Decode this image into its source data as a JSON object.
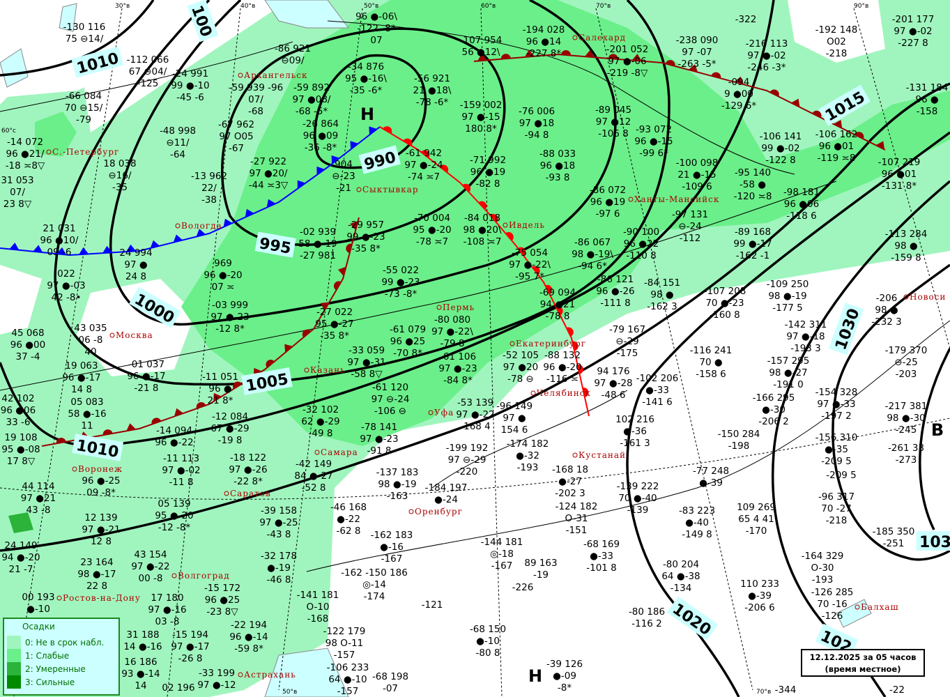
{
  "colors": {
    "precip_0": "#a0f5be",
    "precip_1": "#6bef8a",
    "precip_2": "#2bb33a",
    "precip_3": "#008a00",
    "water": "#ccffff",
    "isobar": "#000000",
    "cold_front": "#0000ff",
    "warm_front": "#ff0000",
    "occluded_front": "#990000",
    "city": "#aa0000",
    "symbols": "#008800"
  },
  "legend": {
    "title": "Осадки",
    "items": [
      {
        "label": "0: Не в срок набл.",
        "level": 0
      },
      {
        "label": "1: Слабые",
        "level": 1
      },
      {
        "label": "2: Умеренные",
        "level": 2
      },
      {
        "label": "3: Сильные",
        "level": 3
      }
    ]
  },
  "datebox": {
    "line1": "12.12.2025 за 05 часов",
    "line2": "(время местное)"
  },
  "isobar_labels": [
    "1010",
    "100",
    "990",
    "995",
    "1000",
    "1005",
    "1010",
    "1015",
    "1030",
    "1020",
    "102",
    "103"
  ],
  "pressure_centers": [
    "Н",
    "Н",
    "В"
  ],
  "meridian_labels": [
    "30°в",
    "40°в",
    "50°в",
    "60°в",
    "70°в",
    "90°в",
    "60°с",
    "50°в",
    "70°в"
  ],
  "cities": [
    "С.-Петербург",
    "Архангельск",
    "Сыктывкар",
    "Вологда",
    "Москва",
    "Казань",
    "Пермь",
    "Ивдель",
    "Салехард",
    "Ханты-Мансийск",
    "Екатеринбург",
    "Челябинск",
    "Кустанай",
    "Уфа",
    "Самара",
    "Оренбург",
    "Саратов",
    "Волгоград",
    "Воронеж",
    "Ростов-на-Дону",
    "Астрахань",
    "Новоси",
    "Балхаш"
  ],
  "stations": [
    [
      "-130 116",
      "75 ⊖14/",
      ""
    ],
    [
      "-112 066",
      "67 ⊖04/",
      "-125"
    ],
    [
      "-66 084",
      "70 ⊖15/",
      "-79"
    ],
    [
      "-14 072",
      "96 ●21/",
      "-18 ≍8▽"
    ],
    [
      "-24 991",
      "99 ●-10",
      "-45 -6"
    ],
    [
      "-48 998",
      "⊖11/",
      "-64"
    ],
    [
      "18 038",
      "⊖16/",
      "-35"
    ],
    [
      "31 053",
      "07/",
      "23 8▽"
    ],
    [
      "21 031",
      "96 ●10/",
      "09 -6"
    ],
    [
      "022",
      "97 ●-03",
      "42 -8•"
    ],
    [
      "-59 939 -96",
      "07/",
      "-68"
    ],
    [
      "-67 962",
      "97 O05",
      "-67"
    ],
    [
      "-27 922",
      "97 ●20/",
      "-44 ≍3▽"
    ],
    [
      "-13 962",
      "22/",
      "-38"
    ],
    [
      "-86 921",
      "⊖09/",
      ""
    ],
    [
      "-59 892",
      "97 ●08/",
      "-68 -5*"
    ],
    [
      "-34 876",
      "95 ●-16\\",
      "-35 -6*"
    ],
    [
      "-26 864",
      "96 ●09",
      "-36 -8*"
    ],
    [
      "96 ●-06\\",
      "-122 -8*",
      "07"
    ],
    [
      "-56 921",
      "21 ●18\\",
      "-78 -6*"
    ],
    [
      "-61 942",
      "97 ●-24",
      "-74 ≍7"
    ],
    [
      "904",
      "⊖-23",
      "-21"
    ],
    [
      "-107 954",
      "56 ●12\\",
      ""
    ],
    [
      "-159 002",
      "97 ●-15",
      "180 8*"
    ],
    [
      "-71 992",
      "96 ●19",
      "-82 8"
    ],
    [
      "-194 028",
      "96 ●14",
      "-227 8*"
    ],
    [
      "-201 052",
      "97 ●-06",
      "-219 -8▽"
    ],
    [
      "-238 090",
      "97 -07",
      "-263 -5*"
    ],
    [
      "-216 113",
      "97 ●-02",
      "-246 -3*"
    ],
    [
      "-192 148",
      "O02",
      "-218"
    ],
    [
      "-201 177",
      "97 ●-02",
      "-227 8"
    ],
    [
      "-131 184",
      "96 ●",
      "-158"
    ],
    [
      "-094",
      "9 ●00",
      "-129 6*"
    ],
    [
      "-106 141",
      "99 ●-02",
      "-122 8"
    ],
    [
      "-106 162",
      "96 ●01",
      "-119 ≍8"
    ],
    [
      "-76 006",
      "97 ●18",
      "-94 8"
    ],
    [
      "-89 045",
      "97 ●12",
      "-106 8"
    ],
    [
      "-93 072",
      "96 ●-15",
      "-99 6*"
    ],
    [
      "-88 033",
      "96 ●18",
      "-93 8"
    ],
    [
      "-100 098",
      "21 ●-15",
      "-109 6"
    ],
    [
      "-95 140",
      "-58 ●",
      "-120 ≍8"
    ],
    [
      "-98 181",
      "96 ●06",
      "-118 6"
    ],
    [
      "-107 219",
      "96 ●01",
      "-131 8*"
    ],
    [
      "-113 284",
      "98 ●",
      "-159 8"
    ],
    [
      "-86 072",
      "96 ●19",
      "-97 6"
    ],
    [
      "-97 131",
      "⊖-24",
      "-112"
    ],
    [
      "-89 168",
      "99 ●-17",
      "-162 -1"
    ],
    [
      "-90 100",
      "96 ●22",
      "-110 8"
    ],
    [
      "-86 067",
      "98 ●-19\\",
      "-94 6*"
    ],
    [
      "-75 054",
      "97 ●-22\\",
      "-95 7*"
    ],
    [
      "-84 018",
      "98 ●20\\",
      "-108 ≍7"
    ],
    [
      "-70 004",
      "95 ●-20",
      "-78 ≍7"
    ],
    [
      "-29 957",
      "99 ●-23",
      "-35 8*"
    ],
    [
      "-02 939",
      "58 ●-19",
      "-27 981"
    ],
    [
      "-55 022",
      "99 ●-23",
      "-73 -8*"
    ],
    [
      "-80 080",
      "97 ●-22\\",
      "-79 8"
    ],
    [
      "-27 022",
      "95 ●-27",
      "-35 8*"
    ],
    [
      "-03 999",
      "97 ●-23",
      "-12 8*"
    ],
    [
      "969",
      "96 ●-20",
      "07 ≍"
    ],
    [
      "24 994",
      "97 ●",
      "24 8"
    ],
    [
      "-33 059",
      "97 ●-31",
      "-58 8▽"
    ],
    [
      "-61 079",
      "96 ●25",
      "-70 8*"
    ],
    [
      "-61 106",
      "97 ●-23",
      "-84 8*"
    ],
    [
      "-52 105",
      "97 ●20",
      "-78 ⊖"
    ],
    [
      "-88 132",
      "96 ●-20",
      "-116 ≍"
    ],
    [
      "-69 094",
      "94 ●21",
      "-78 8"
    ],
    [
      "-86 121",
      "96 ●-26",
      "-111 8"
    ],
    [
      "-84 151",
      "98 ●",
      "-162 3"
    ],
    [
      "-107 208",
      "70 ●-23",
      "-160 8"
    ],
    [
      "-109 250",
      "98 ●-19",
      "-177 5"
    ],
    [
      "-142 311",
      "97 ●-18",
      "-193 3"
    ],
    [
      "-206",
      "98 ●",
      "-232 3"
    ],
    [
      "-79 167",
      "⊖-29",
      "-175"
    ],
    [
      "-116 241",
      "70 ●",
      "-158 6"
    ],
    [
      "-157 295",
      "98 ●-27",
      "-191 0"
    ],
    [
      "-179 370",
      "⊖-25",
      "-203"
    ],
    [
      "94 176",
      "97 ●-28",
      "-48 6"
    ],
    [
      "-102 206",
      "●-33",
      "-141 6"
    ],
    [
      "-166 295",
      "●-30",
      "-206 2"
    ],
    [
      "-154 328",
      "97 ●-33",
      "-197 2"
    ],
    [
      "-217 381",
      "98 ●-30",
      "-245"
    ],
    [
      "-61 120",
      "97 ⊖-24",
      "-106 ⊖"
    ],
    [
      "-53 139",
      "97 ●-22",
      "-168 4"
    ],
    [
      "-96 149",
      "97 ●",
      "154 6"
    ],
    [
      "-32 102",
      "62 ●-29",
      "-49 8"
    ],
    [
      "-78 141",
      "97 ●-23",
      "-91 8"
    ],
    [
      "-174 182",
      "●-32",
      "-193"
    ],
    [
      "-199 192",
      "97 ⊖-29",
      "-220"
    ],
    [
      "-168 18",
      "●-27",
      "-202 3"
    ],
    [
      "102 216",
      "●-36",
      "-161 3"
    ],
    [
      "-150 284",
      "-198",
      ""
    ],
    [
      "-156 310",
      "●-35",
      "-209 5"
    ],
    [
      "-261 33",
      "-273",
      ""
    ],
    [
      "-11 051",
      "96 ●",
      "21 8*"
    ],
    [
      "-12 084",
      "67 ●-29",
      "-19 8"
    ],
    [
      "-42 149",
      "84 ●-27",
      "-52 8"
    ],
    [
      "-18 122",
      "97 ●-26",
      "-22 8*"
    ],
    [
      "-14 094",
      "96 ●-22",
      ""
    ],
    [
      "05 083",
      "58 ●-16",
      "11"
    ],
    [
      "19 108",
      "95 ●-08",
      "17 8▽"
    ],
    [
      "19 063",
      "96 ●-17",
      "14 8"
    ],
    [
      "-01 037",
      "96 ●-17",
      "-21 8"
    ],
    [
      "43 035",
      "06 -8",
      "40"
    ],
    [
      "45 068",
      "96 ●00",
      "37 -4"
    ],
    [
      "42 102",
      "96 ●06",
      "33 -6"
    ],
    [
      "96 ●-25",
      "09 -8*",
      ""
    ],
    [
      "44 114",
      "97 ●21",
      "43 -8"
    ],
    [
      "12 139",
      "97 ●-21",
      "12 8"
    ],
    [
      "24 149",
      "94 ●-20",
      "21 -7"
    ],
    [
      "-11 113",
      "97 ●-02",
      "-11 8"
    ],
    [
      "05 139",
      "95 ●-20",
      "-12 -8*"
    ],
    [
      "43 154",
      "97 ●-22",
      "00 -8"
    ],
    [
      "-39 158",
      "97 ●-25",
      "-43 8"
    ],
    [
      "-32 178",
      "●-19",
      "-46 8"
    ],
    [
      "-15 172",
      "96 ●25",
      "-23 8▽"
    ],
    [
      "23 164",
      "98 ●-17",
      "22 8"
    ],
    [
      "17 180",
      "97 ●-16",
      "03 -8"
    ],
    [
      "31 188",
      "14 ●-16",
      ""
    ],
    [
      "-15 194",
      "97 ●-17",
      "-26 8"
    ],
    [
      "-22 194",
      "96 ●-14",
      "-59 8*"
    ],
    [
      "-33 199",
      "97 ●-12",
      ""
    ],
    [
      "16 186",
      "93 ●-14",
      "14"
    ],
    [
      "00 193",
      "●-10",
      ""
    ],
    [
      "02 196",
      "",
      ""
    ],
    [
      "-46 168",
      "●-22",
      "-62 8"
    ],
    [
      "-162 183",
      "●-16",
      "-167"
    ],
    [
      "-137 183",
      "98 ●-19",
      "-163"
    ],
    [
      "-184 197",
      "●-24",
      ""
    ],
    [
      "-162 -150 186",
      "◎-14",
      "-174"
    ],
    [
      "-141 181",
      "O-10",
      "-168"
    ],
    [
      "-122 179",
      "98 O-11",
      "-157"
    ],
    [
      "-106 233",
      "64 ●-10",
      "-157"
    ],
    [
      "-68 198",
      "-07",
      ""
    ],
    [
      "-121",
      "",
      ""
    ],
    [
      "-144 181",
      "◎-18",
      "-167"
    ],
    [
      "89 163",
      "-19",
      ""
    ],
    [
      "-226",
      "",
      ""
    ],
    [
      "-124 182",
      "O-31",
      "-151"
    ],
    [
      "-68 169",
      "●-33",
      "-101 8"
    ],
    [
      "-68 150",
      "●-10",
      "-80 8"
    ],
    [
      "-39 126",
      "●-09",
      "-8*"
    ],
    [
      "-139 222",
      "70 ●-40",
      "-139"
    ],
    [
      "-77 248",
      "●-39",
      ""
    ],
    [
      "-80 204",
      "64 ●-38",
      "-134"
    ],
    [
      "-83 223",
      "●-40",
      "-149 8"
    ],
    [
      "109 269",
      "65 4 41",
      "-170"
    ],
    [
      "-96 317",
      "70 -27",
      "-218"
    ],
    [
      "-164 329",
      "O-30",
      "-193"
    ],
    [
      "-185 350",
      "-251",
      ""
    ],
    [
      "110 233",
      "●-39",
      "-206 6"
    ],
    [
      "-126 285",
      "70 -16",
      "-126"
    ],
    [
      "-80 186",
      "-116 2",
      ""
    ],
    [
      "-344",
      "",
      ""
    ],
    [
      "-22",
      "",
      ""
    ],
    [
      "-322",
      "",
      ""
    ],
    [
      "-209 5",
      "",
      ""
    ]
  ]
}
